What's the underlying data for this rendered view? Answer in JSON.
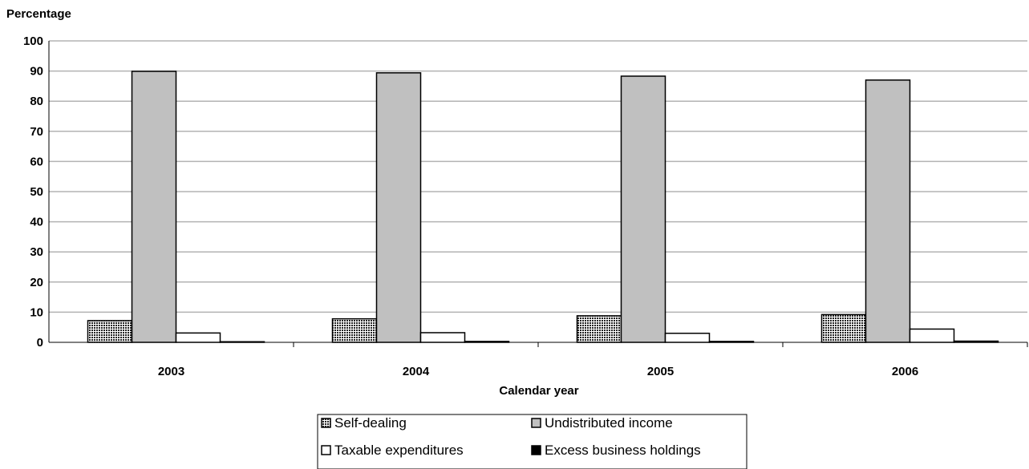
{
  "chart_data": {
    "type": "bar",
    "ylabel": "Percentage",
    "xlabel": "Calendar year",
    "ylim": [
      0,
      100
    ],
    "yticks": [
      0,
      10,
      20,
      30,
      40,
      50,
      60,
      70,
      80,
      90,
      100
    ],
    "grid": true,
    "legend_position": "bottom-center",
    "categories": [
      "2003",
      "2004",
      "2005",
      "2006"
    ],
    "series": [
      {
        "name": "Self-dealing",
        "values": [
          7.2,
          7.8,
          8.8,
          9.2
        ],
        "fill": "#333333",
        "pattern": "dots"
      },
      {
        "name": "Undistributed income",
        "values": [
          89.9,
          89.4,
          88.3,
          87.0
        ],
        "fill": "#c0c0c0",
        "pattern": "solid"
      },
      {
        "name": "Taxable expenditures",
        "values": [
          3.1,
          3.2,
          3.0,
          4.4
        ],
        "fill": "#ffffff",
        "pattern": "solid"
      },
      {
        "name": "Excess business holdings",
        "values": [
          0.2,
          0.3,
          0.3,
          0.4
        ],
        "fill": "#000000",
        "pattern": "solid"
      }
    ]
  }
}
